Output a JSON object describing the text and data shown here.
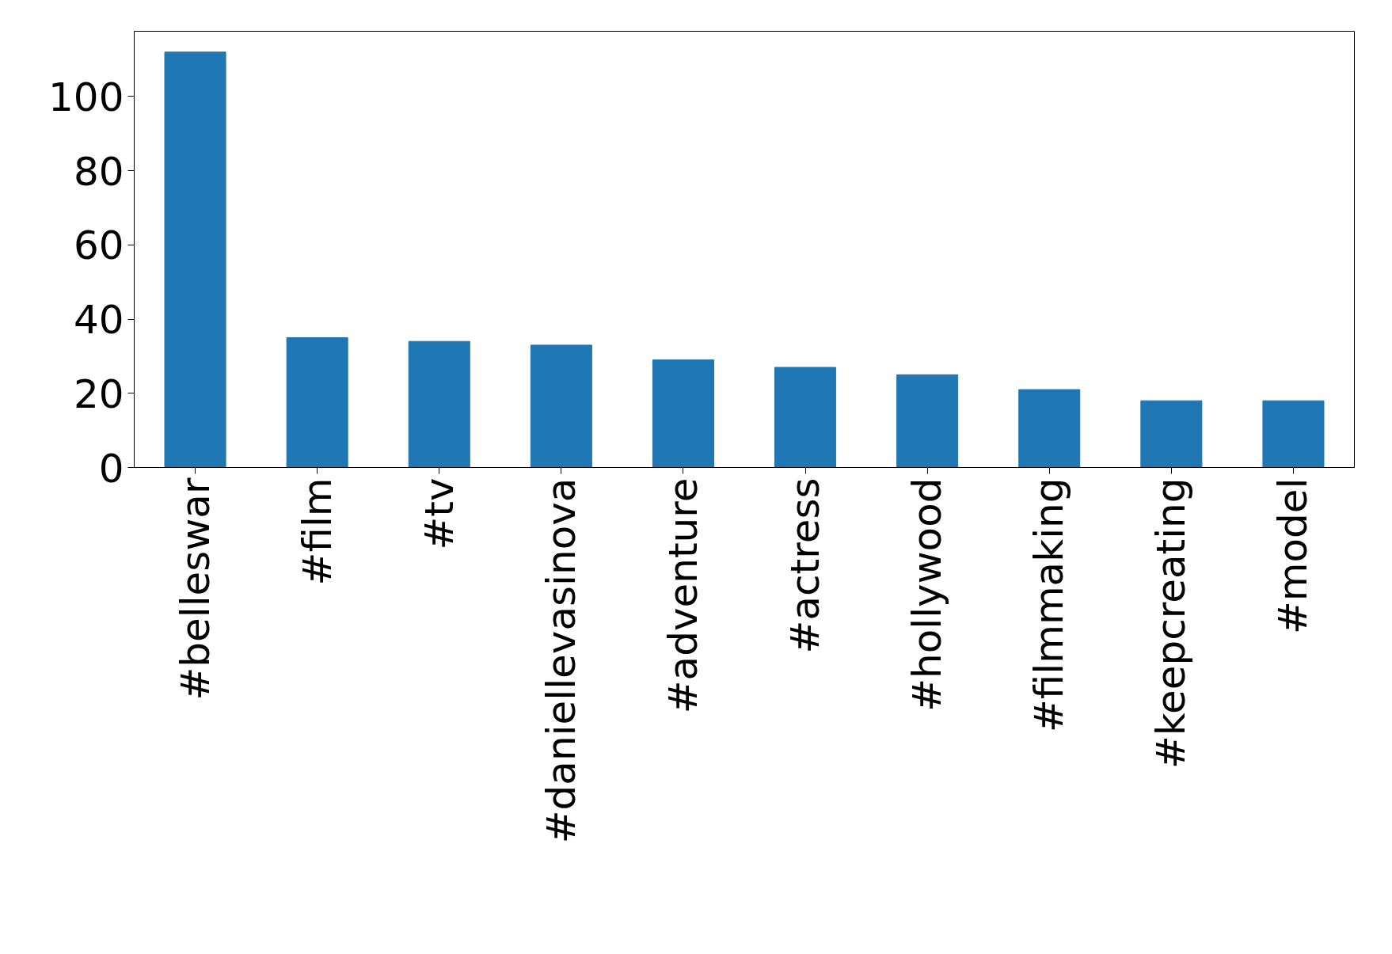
{
  "chart_data": {
    "type": "bar",
    "categories": [
      "#belleswar",
      "#film",
      "#tv",
      "#daniellevasinova",
      "#adventure",
      "#actress",
      "#hollywood",
      "#filmmaking",
      "#keepcreating",
      "#model"
    ],
    "values": [
      112,
      35,
      34,
      33,
      29,
      27,
      25,
      21,
      18,
      18
    ],
    "color": "#1f77b4",
    "ylim": [
      0,
      117.6
    ],
    "yticks": [
      0,
      20,
      40,
      60,
      80,
      100
    ],
    "grid": false
  }
}
